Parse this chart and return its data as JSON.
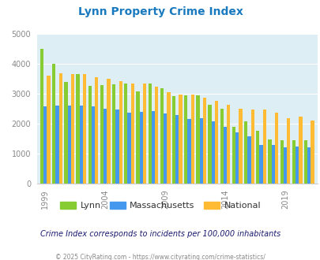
{
  "title": "Lynn Property Crime Index",
  "title_color": "#1a7abf",
  "years": [
    1999,
    2000,
    2001,
    2002,
    2003,
    2004,
    2005,
    2006,
    2007,
    2008,
    2009,
    2010,
    2011,
    2012,
    2013,
    2014,
    2015,
    2016,
    2017,
    2018,
    2019,
    2020,
    2021
  ],
  "lynn": [
    4500,
    4000,
    3400,
    3650,
    3250,
    3280,
    3300,
    3350,
    3080,
    3340,
    3180,
    2920,
    2930,
    2950,
    2620,
    2490,
    1890,
    2080,
    1760,
    1460,
    1450,
    1450,
    1430
  ],
  "massachusetts": [
    2560,
    2600,
    2590,
    2600,
    2570,
    2490,
    2480,
    2350,
    2395,
    2410,
    2340,
    2290,
    2160,
    2180,
    2065,
    1890,
    1710,
    1570,
    1280,
    1290,
    1210,
    1220,
    1200
  ],
  "national": [
    3600,
    3680,
    3650,
    3650,
    3550,
    3500,
    3420,
    3350,
    3330,
    3220,
    3040,
    2980,
    2970,
    2870,
    2750,
    2620,
    2500,
    2470,
    2480,
    2360,
    2190,
    2230,
    2110
  ],
  "lynn_color": "#88cc33",
  "mass_color": "#4499ee",
  "national_color": "#ffbb33",
  "bg_color": "#deeef5",
  "ylim": [
    0,
    5000
  ],
  "yticks": [
    0,
    1000,
    2000,
    3000,
    4000,
    5000
  ],
  "xlabel_ticks": [
    1999,
    2004,
    2009,
    2014,
    2019
  ],
  "subtitle": "Crime Index corresponds to incidents per 100,000 inhabitants",
  "footer": "© 2025 CityRating.com - https://www.cityrating.com/crime-statistics/",
  "subtitle_color": "#1a1a6e",
  "footer_color": "#888888",
  "legend_labels": [
    "Lynn",
    "Massachusetts",
    "National"
  ]
}
